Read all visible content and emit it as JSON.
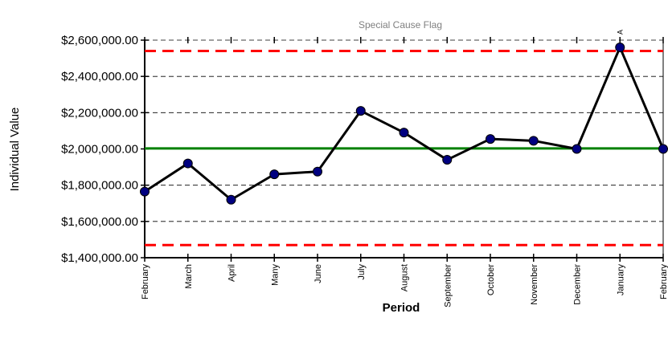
{
  "chart_data": {
    "type": "line",
    "title": "Special Cause Flag",
    "xlabel": "Period",
    "ylabel": "Individual Value",
    "categories": [
      "February",
      "March",
      "April",
      "Many",
      "June",
      "July",
      "August",
      "September",
      "October",
      "November",
      "December",
      "January",
      "February"
    ],
    "series": [
      {
        "values": [
          1765000,
          1920000,
          1720000,
          1860000,
          1875000,
          2210000,
          2090000,
          1940000,
          2055000,
          2045000,
          2000000,
          2560000,
          2000000
        ]
      }
    ],
    "center_line": 2003000,
    "upper_control_limit": 2540000,
    "lower_control_limit": 1470000,
    "flags": [
      {
        "index": 11,
        "label": "A"
      }
    ],
    "ylim": [
      1400000,
      2600000
    ],
    "yticks": [
      1400000,
      1600000,
      1800000,
      2000000,
      2200000,
      2400000,
      2600000
    ],
    "ytick_labels": [
      "$1,400,000.00",
      "$1,600,000.00",
      "$1,800,000.00",
      "$2,000,000.00",
      "$2,200,000.00",
      "$2,400,000.00",
      "$2,600,000.00"
    ],
    "grid": "horizontal dashed",
    "colors": {
      "series_line": "#000000",
      "marker_fill": "#000080",
      "center_line": "#008000",
      "control_limits": "#ff0000",
      "gridline": "#000000",
      "title_text": "#808080"
    }
  }
}
